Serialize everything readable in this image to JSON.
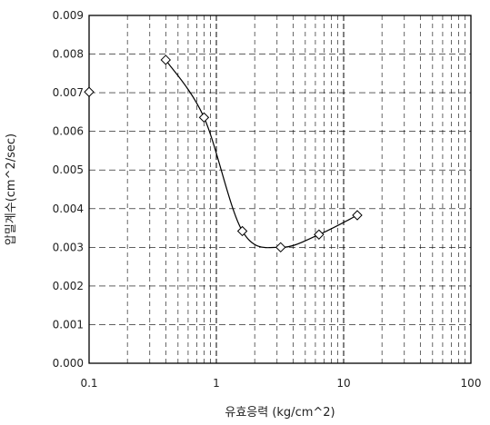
{
  "chart_data": {
    "type": "scatter",
    "title": "",
    "xlabel": "유효응력 (kg/cm^2)",
    "ylabel": "압밀계수(cm^2/sec)",
    "x_scale": "log",
    "xlim": [
      0.1,
      100
    ],
    "ylim": [
      0.0,
      0.009
    ],
    "x_ticks": [
      "0.1",
      "1",
      "10",
      "100"
    ],
    "y_ticks": [
      "0.000",
      "0.001",
      "0.002",
      "0.003",
      "0.004",
      "0.005",
      "0.006",
      "0.007",
      "0.008",
      "0.009"
    ],
    "grid": true,
    "legend": "none",
    "series": [
      {
        "marker": "diamond",
        "line": "smooth",
        "points": [
          {
            "x": 0.1,
            "y": 0.00702
          },
          {
            "x": 0.4,
            "y": 0.00785
          },
          {
            "x": 0.8,
            "y": 0.00636
          },
          {
            "x": 1.6,
            "y": 0.00342
          },
          {
            "x": 3.2,
            "y": 0.003
          },
          {
            "x": 6.4,
            "y": 0.00333
          },
          {
            "x": 12.8,
            "y": 0.00383
          }
        ]
      }
    ]
  }
}
